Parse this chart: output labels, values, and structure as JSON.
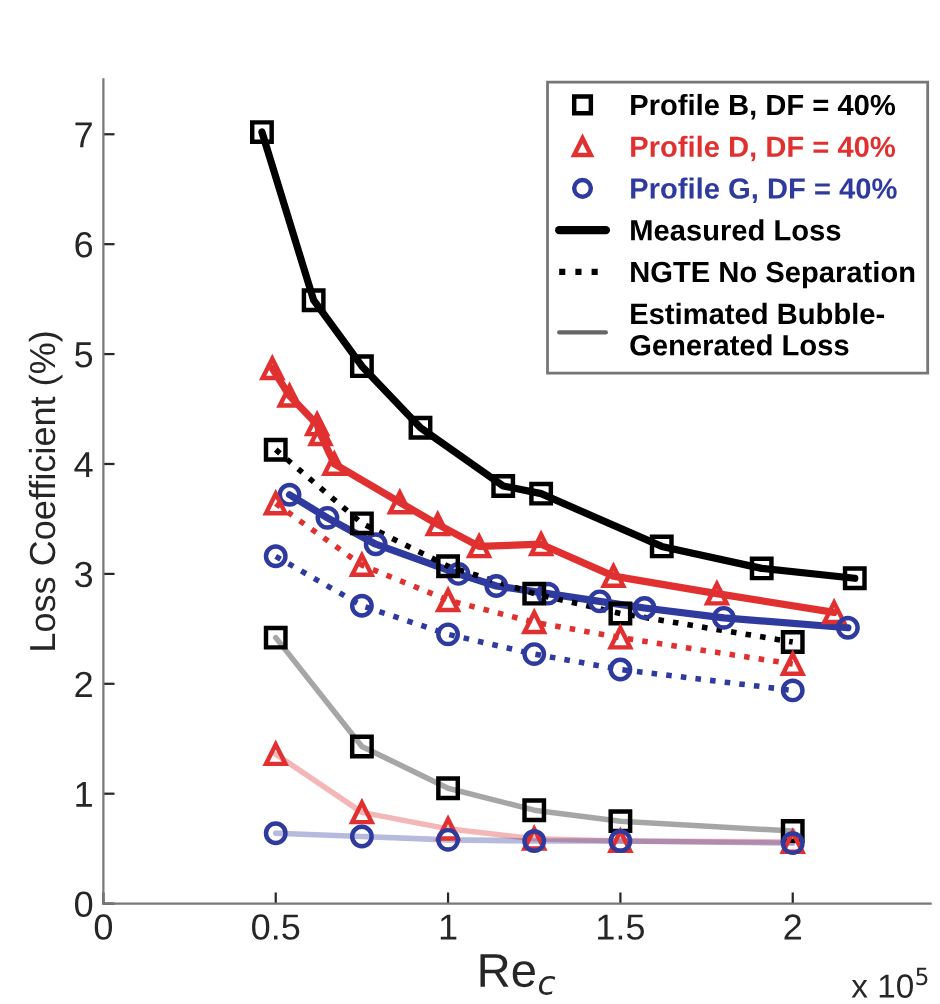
{
  "chart_data": {
    "type": "line",
    "xlabel": "Re$_{c}$",
    "ylabel": "Loss Coefficient (%)",
    "xlim": [
      0,
      2.4
    ],
    "ylim": [
      0,
      7.5
    ],
    "xticks": [
      0,
      0.5,
      1,
      1.5,
      2
    ],
    "yticks": [
      0,
      1,
      2,
      3,
      4,
      5,
      6,
      7
    ],
    "grid": false,
    "legend": "top right",
    "annotations": [
      "x 10$^{5}$",
      "Measured Loss",
      "NGTE No Separation",
      "Estimated Bubble-\nGenerated Loss"
    ],
    "series": [
      {
        "name": "Profile B, DF = 40%",
        "color": "#000000",
        "marker": "square",
        "line_style": "solid",
        "x": [
          0.46,
          0.61,
          0.75,
          0.92,
          1.16,
          1.27,
          1.62,
          1.91,
          2.18
        ],
        "values": [
          7.02,
          5.49,
          4.89,
          4.33,
          3.8,
          3.73,
          3.25,
          3.05,
          2.96
        ]
      },
      {
        "name": "Profile D, DF = 40%",
        "color": "#e03030",
        "marker": "triangle",
        "line_style": "solid",
        "x": [
          0.49,
          0.54,
          0.62,
          0.63,
          0.67,
          0.86,
          0.97,
          1.09,
          1.27,
          1.48,
          1.78,
          2.12
        ],
        "values": [
          4.87,
          4.62,
          4.36,
          4.27,
          4.0,
          3.65,
          3.45,
          3.25,
          3.27,
          2.98,
          2.82,
          2.65
        ]
      },
      {
        "name": "Profile G, DF = 40%",
        "color": "#2e3a9e",
        "marker": "circle",
        "line_style": "solid",
        "x": [
          0.54,
          0.65,
          0.79,
          1.03,
          1.14,
          1.29,
          1.44,
          1.57,
          1.8,
          2.16
        ],
        "values": [
          3.72,
          3.51,
          3.27,
          3.0,
          2.89,
          2.82,
          2.75,
          2.69,
          2.6,
          2.51
        ]
      },
      {
        "color": "#000000",
        "marker": "square",
        "line_style": "dotted",
        "x": [
          0.5,
          0.75,
          1.0,
          1.25,
          1.5,
          2.0
        ],
        "values": [
          4.13,
          3.46,
          3.07,
          2.82,
          2.64,
          2.38
        ]
      },
      {
        "color": "#e03030",
        "marker": "triangle",
        "line_style": "dotted",
        "x": [
          0.5,
          0.75,
          1.0,
          1.25,
          1.5,
          2.0
        ],
        "values": [
          3.64,
          3.08,
          2.76,
          2.56,
          2.42,
          2.18
        ]
      },
      {
        "color": "#2e3a9e",
        "marker": "circle",
        "line_style": "dotted",
        "x": [
          0.5,
          0.75,
          1.0,
          1.25,
          1.5,
          2.0
        ],
        "values": [
          3.16,
          2.71,
          2.45,
          2.27,
          2.13,
          1.94
        ]
      },
      {
        "color": "#000000",
        "marker": "square",
        "line_style": "solid",
        "x": [
          0.5,
          0.75,
          1.0,
          1.25,
          1.5,
          2.0
        ],
        "values": [
          2.42,
          1.43,
          1.05,
          0.85,
          0.75,
          0.66
        ]
      },
      {
        "color": "#e03030",
        "marker": "triangle",
        "line_style": "solid",
        "x": [
          0.5,
          0.75,
          1.0,
          1.25,
          1.5,
          2.0
        ],
        "values": [
          1.36,
          0.83,
          0.68,
          0.59,
          0.57,
          0.56
        ]
      },
      {
        "color": "#2e3a9e",
        "marker": "circle",
        "line_style": "solid",
        "x": [
          0.5,
          0.75,
          1.0,
          1.25,
          1.5,
          2.0
        ],
        "values": [
          0.64,
          0.61,
          0.58,
          0.57,
          0.57,
          0.55
        ]
      }
    ]
  }
}
